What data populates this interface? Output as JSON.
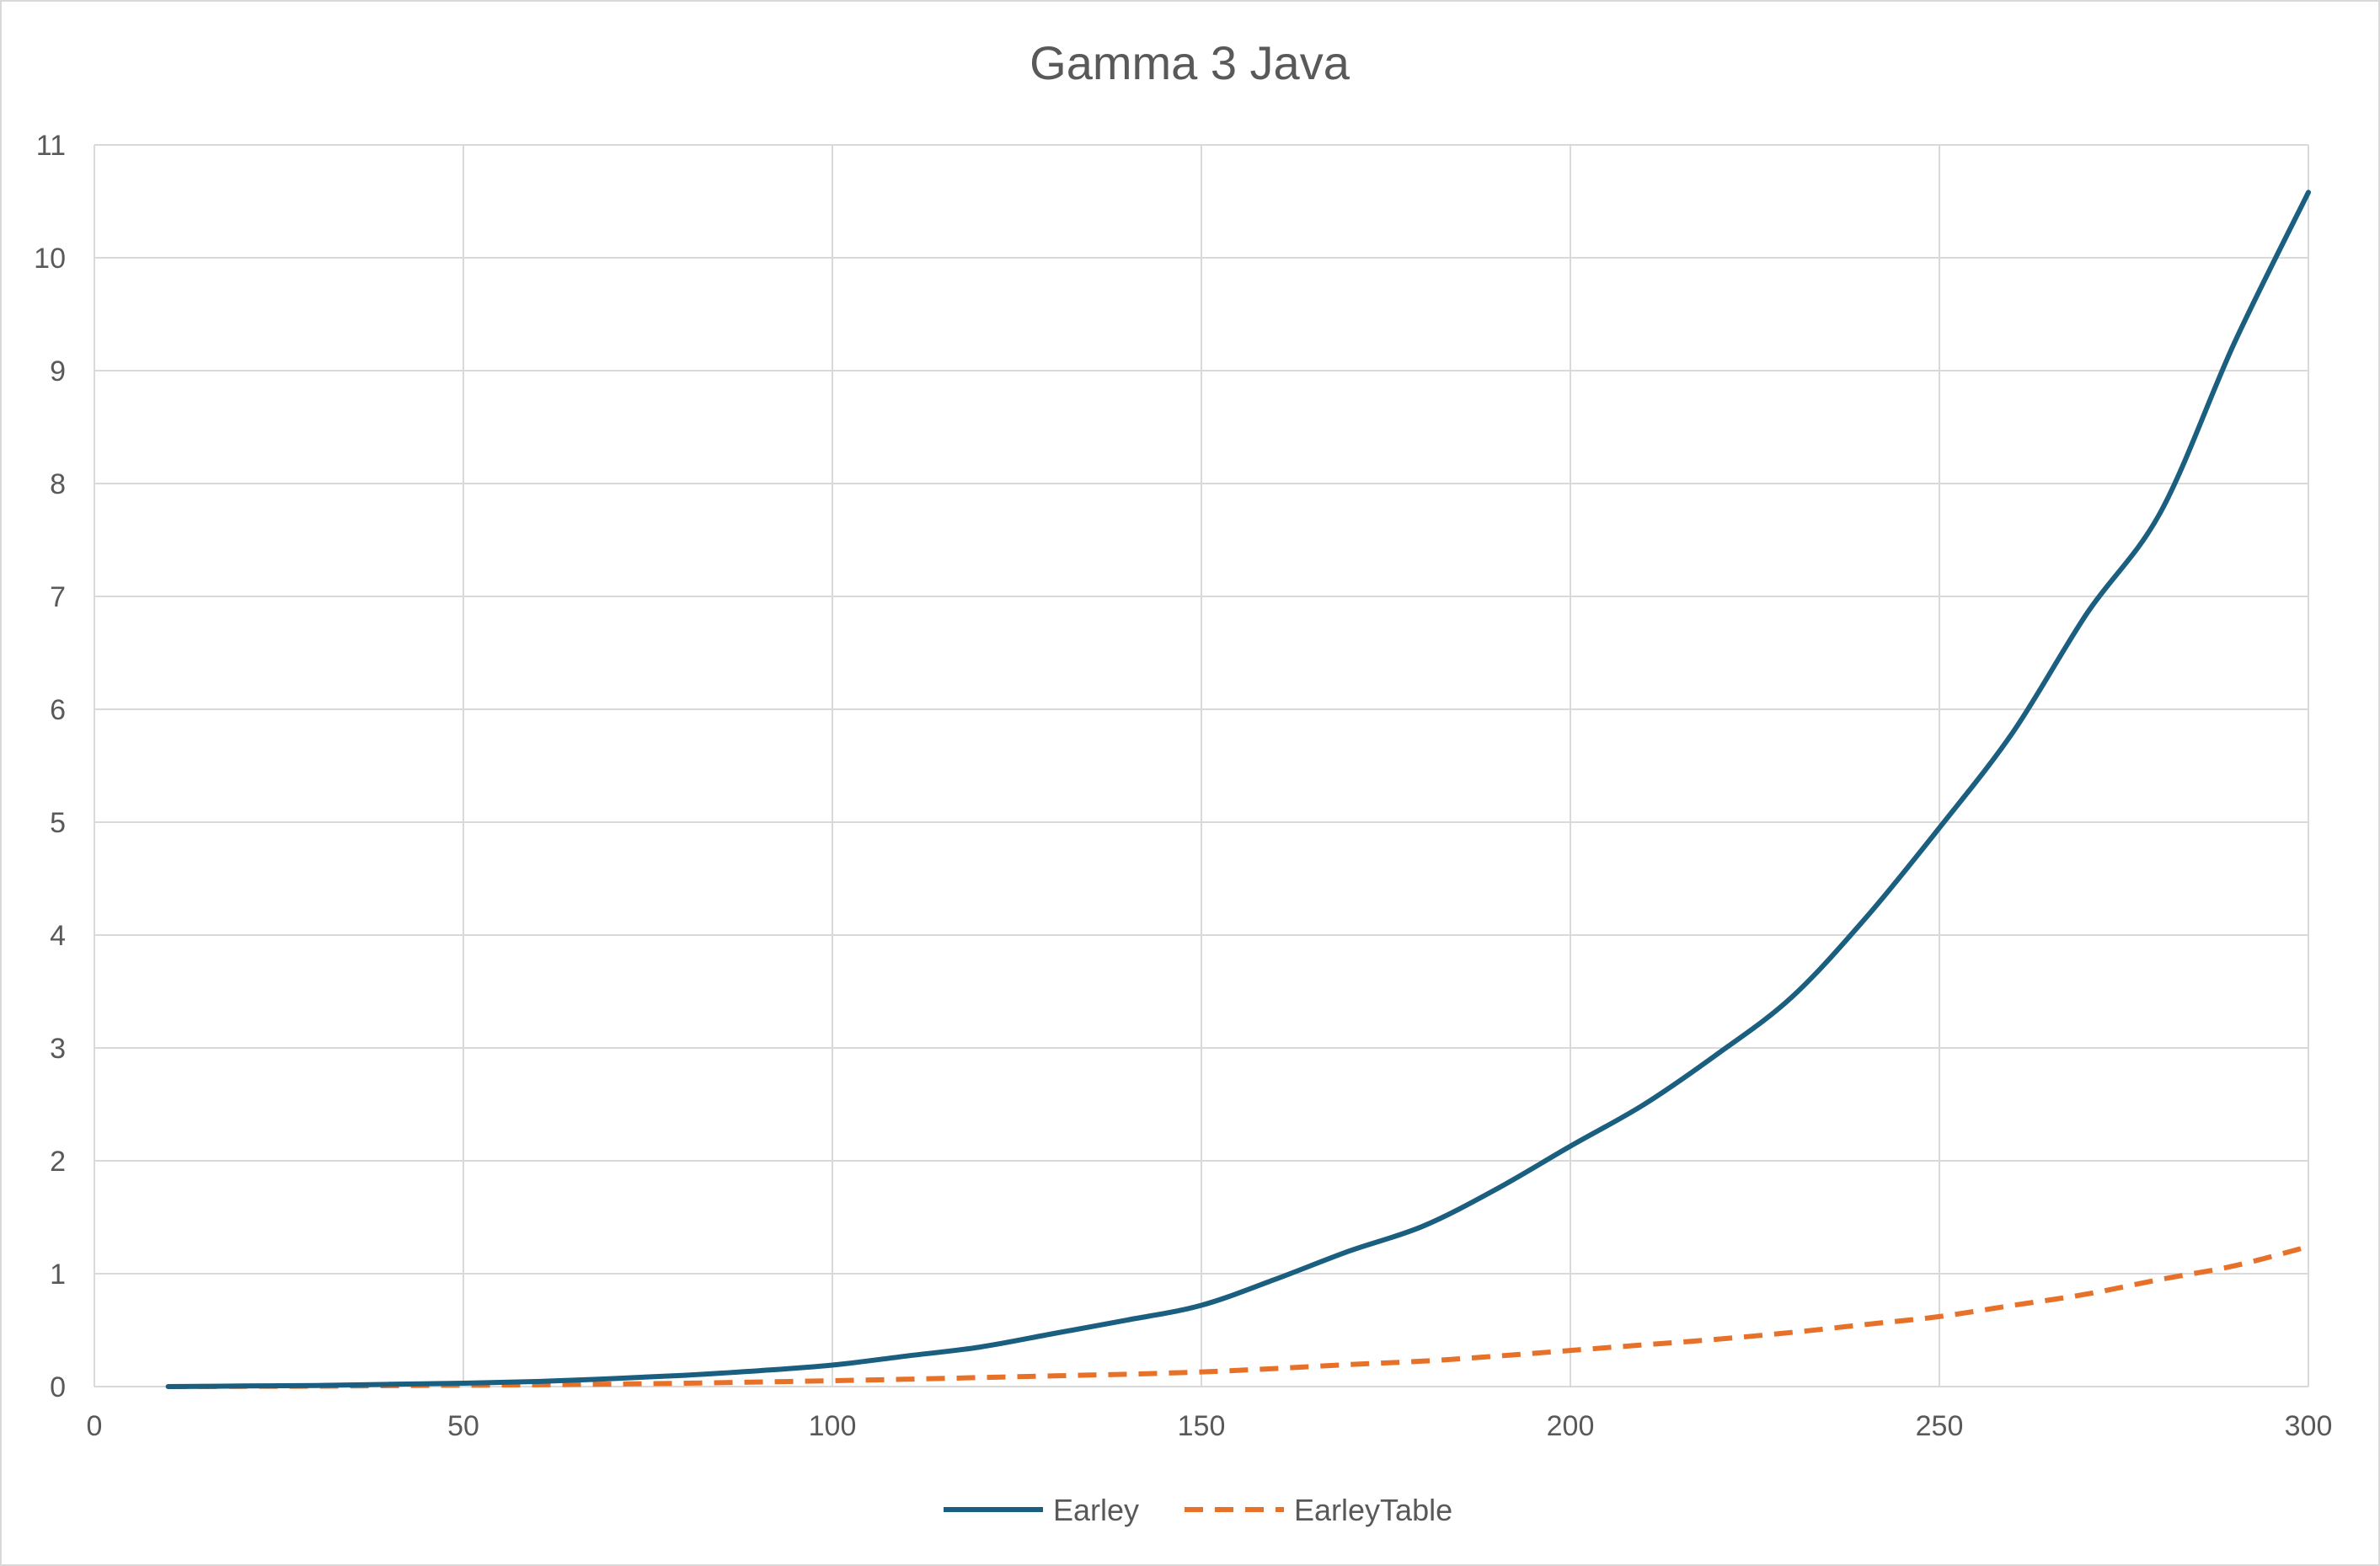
{
  "chart_data": {
    "type": "line",
    "title": "Gamma 3 Java",
    "xlabel": "",
    "ylabel": "",
    "xlim": [
      0,
      300
    ],
    "ylim": [
      0,
      11
    ],
    "x_ticks": [
      "0",
      "50",
      "100",
      "150",
      "200",
      "250",
      "300"
    ],
    "y_ticks": [
      "0",
      "1",
      "2",
      "3",
      "4",
      "5",
      "6",
      "7",
      "8",
      "9",
      "10",
      "11"
    ],
    "grid": true,
    "legend_position": "bottom",
    "x": [
      10,
      20,
      30,
      40,
      50,
      60,
      70,
      80,
      90,
      100,
      110,
      120,
      130,
      140,
      150,
      160,
      170,
      180,
      190,
      200,
      210,
      220,
      230,
      240,
      250,
      260,
      270,
      280,
      290,
      300
    ],
    "series": [
      {
        "name": "Earley",
        "color": "#1a5e80",
        "dash": "solid",
        "values": [
          0.0,
          0.005,
          0.01,
          0.02,
          0.03,
          0.045,
          0.07,
          0.1,
          0.14,
          0.19,
          0.27,
          0.35,
          0.47,
          0.59,
          0.72,
          0.95,
          1.2,
          1.42,
          1.75,
          2.13,
          2.5,
          2.95,
          3.45,
          4.15,
          4.95,
          5.8,
          6.85,
          7.75,
          9.25,
          10.58
        ]
      },
      {
        "name": "EarleyTable",
        "color": "#e8712a",
        "dash": "dashed",
        "values": [
          0.0,
          0.002,
          0.004,
          0.008,
          0.012,
          0.016,
          0.022,
          0.03,
          0.04,
          0.052,
          0.065,
          0.08,
          0.095,
          0.11,
          0.13,
          0.16,
          0.195,
          0.225,
          0.27,
          0.32,
          0.37,
          0.42,
          0.48,
          0.55,
          0.62,
          0.72,
          0.82,
          0.95,
          1.07,
          1.24
        ]
      }
    ]
  }
}
